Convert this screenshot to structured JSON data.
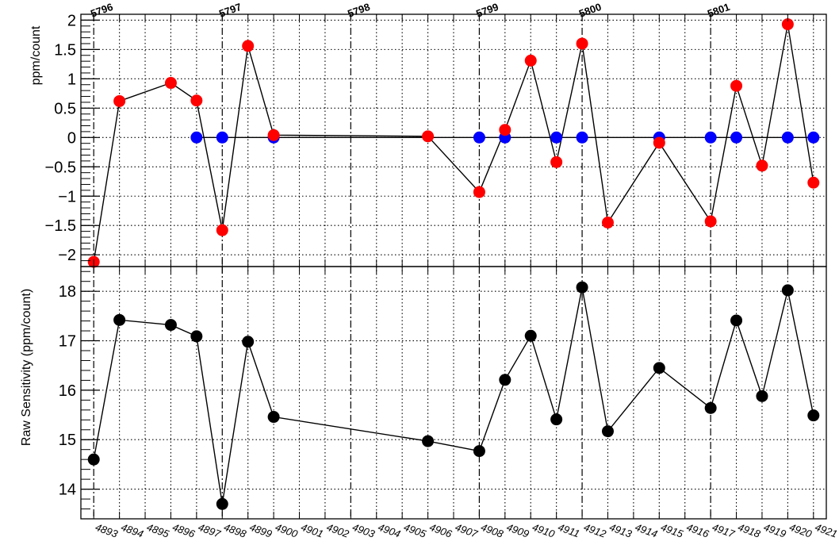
{
  "chart_data": [
    {
      "type": "scatter",
      "panel": "top",
      "ylabel": "ppm/count",
      "ylim": [
        -2.2,
        2.1
      ],
      "yticks": [
        2,
        1.5,
        1,
        0.5,
        0,
        -0.5,
        -1,
        -1.5,
        -2
      ],
      "ytick_labels": [
        "2",
        "1.5",
        "1",
        "0.5",
        "0",
        "−0.5",
        "−1",
        "−1.5",
        "−2"
      ],
      "grid": true,
      "series": [
        {
          "color": "#ff0000",
          "connected": true,
          "x": [
            4893,
            4894,
            4896,
            4897,
            4898,
            4899,
            4900,
            4906,
            4908,
            4909,
            4910,
            4911,
            4912,
            4913,
            4915,
            4917,
            4918,
            4919,
            4920,
            4921
          ],
          "y": [
            -2.12,
            0.62,
            0.93,
            0.63,
            -1.58,
            1.56,
            0.04,
            0.02,
            -0.93,
            0.13,
            1.31,
            -0.42,
            1.6,
            -1.45,
            -0.09,
            -1.43,
            0.88,
            -0.48,
            1.93,
            -0.77
          ]
        },
        {
          "color": "#0000ff",
          "connected": false,
          "x": [
            4897,
            4898,
            4900,
            4908,
            4909,
            4911,
            4912,
            4915,
            4917,
            4918,
            4920,
            4921
          ],
          "y": [
            0,
            0,
            0,
            0,
            0,
            0,
            0,
            0,
            0,
            0,
            0,
            0
          ]
        }
      ]
    },
    {
      "type": "line",
      "panel": "bottom",
      "ylabel": "Raw Sensitivity (ppm/count)",
      "ylim": [
        13.4,
        18.5
      ],
      "yticks": [
        14,
        15,
        16,
        17,
        18
      ],
      "ytick_labels": [
        "14",
        "15",
        "16",
        "17",
        "18"
      ],
      "grid": true,
      "series": [
        {
          "color": "#000000",
          "x": [
            4893,
            4894,
            4896,
            4897,
            4898,
            4899,
            4900,
            4906,
            4908,
            4909,
            4910,
            4911,
            4912,
            4913,
            4915,
            4917,
            4918,
            4919,
            4920,
            4921
          ],
          "y": [
            14.6,
            17.42,
            17.32,
            17.09,
            13.7,
            16.98,
            15.46,
            14.97,
            14.77,
            16.21,
            17.1,
            15.41,
            18.08,
            15.17,
            16.45,
            15.64,
            17.41,
            15.88,
            18.02,
            15.49
          ]
        }
      ]
    }
  ],
  "x_axis": {
    "ticks": [
      4893,
      4894,
      4895,
      4896,
      4897,
      4898,
      4899,
      4900,
      4901,
      4902,
      4903,
      4904,
      4905,
      4906,
      4907,
      4908,
      4909,
      4910,
      4911,
      4912,
      4913,
      4914,
      4915,
      4916,
      4917,
      4918,
      4919,
      4920,
      4921
    ],
    "labels": [
      "4893",
      "4894",
      "4895",
      "4896",
      "4897",
      "4898",
      "4899",
      "4900",
      "4901",
      "4902",
      "4903",
      "4904",
      "4905",
      "4906",
      "4907",
      "4908",
      "4909",
      "4910",
      "4911",
      "4912",
      "4913",
      "4914",
      "4915",
      "4916",
      "4917",
      "4918",
      "4919",
      "4920",
      "4921"
    ]
  },
  "run_markers": [
    {
      "label": "5796",
      "x": 4893
    },
    {
      "label": "5797",
      "x": 4898
    },
    {
      "label": "5798",
      "x": 4903
    },
    {
      "label": "5799",
      "x": 4908
    },
    {
      "label": "5800",
      "x": 4912
    },
    {
      "label": "5801",
      "x": 4917
    }
  ]
}
